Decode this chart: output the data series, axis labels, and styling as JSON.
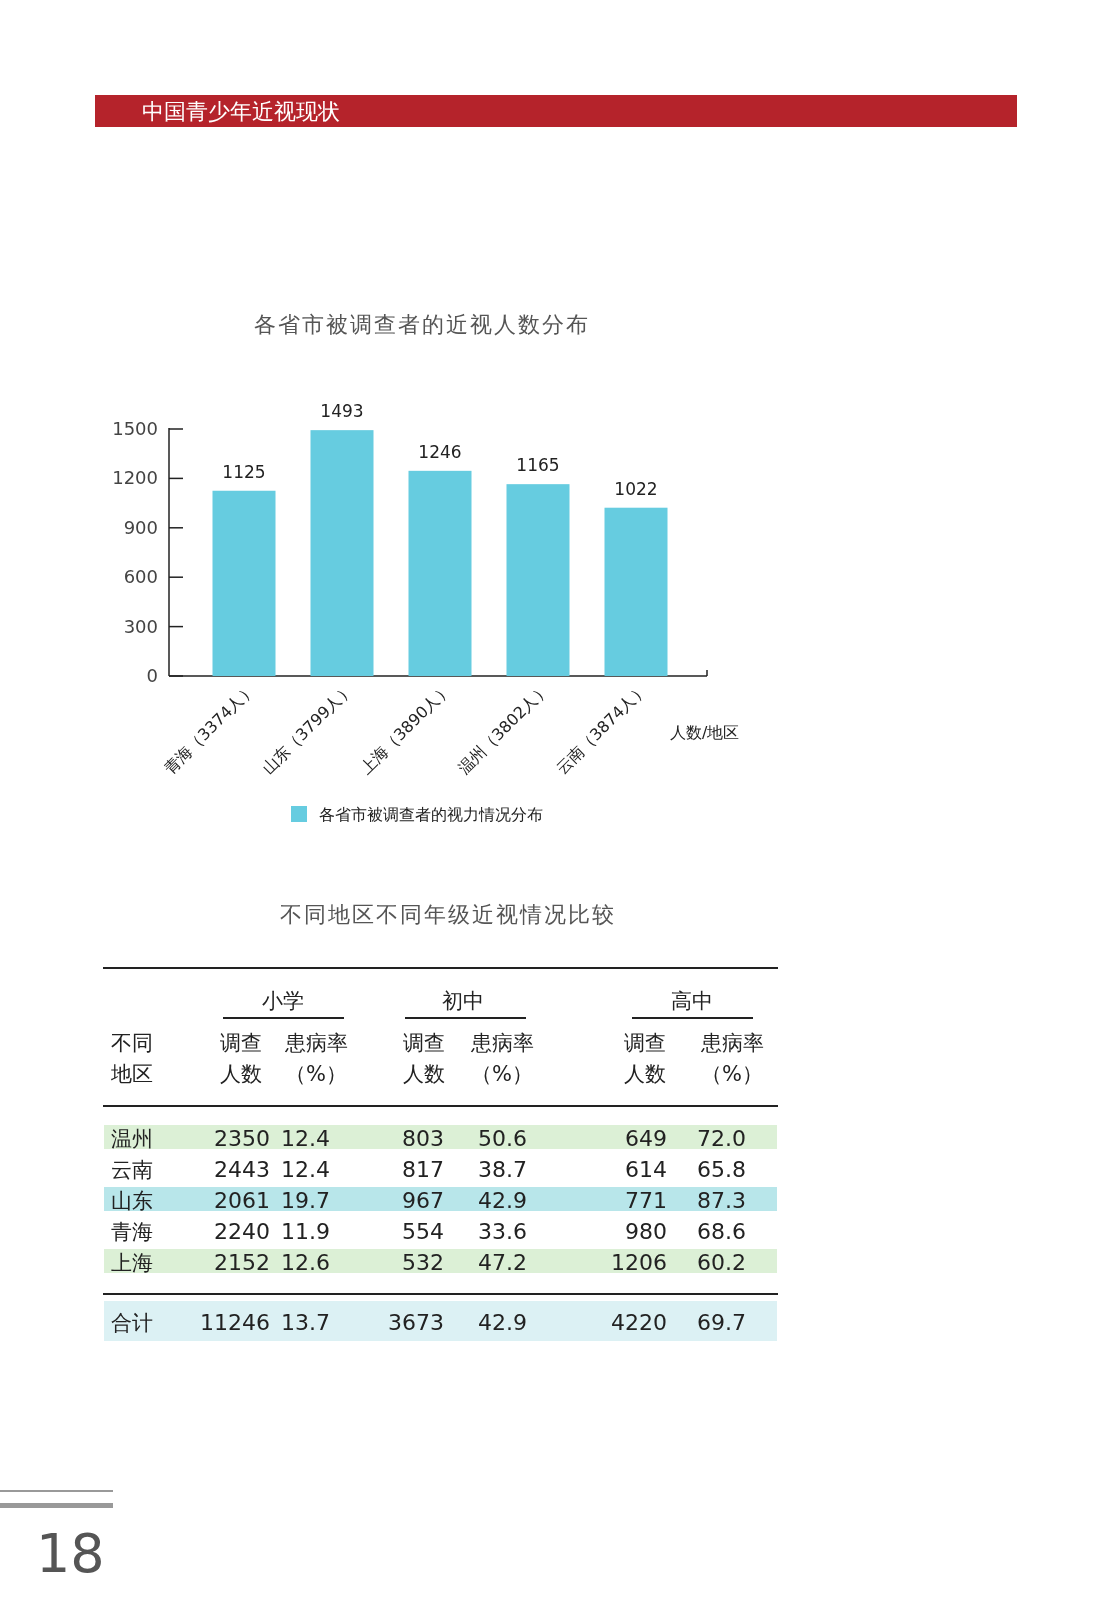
{
  "chart_data": [
    {
      "type": "other",
      "title": "中国青少年近视现状",
      "annotations": [
        "18"
      ]
    },
    {
      "type": "bar",
      "title": "各省市被调查者的近视人数分布",
      "xlabel": "人数/地区",
      "categories": [
        "青海（3374人）",
        "山东（3799人）",
        "上海（3890人）",
        "温州（3802人）",
        "云南（3874人）"
      ],
      "series": [
        {
          "name": "各省市被调查者的视力情况分布",
          "color": "#66cce0",
          "values": [
            1125,
            1493,
            1246,
            1165,
            1022
          ]
        }
      ],
      "ylim": [
        0,
        1500
      ],
      "yticks": [
        0,
        300,
        600,
        900,
        1200,
        1500
      ],
      "data_labels": true,
      "legend": "bottom"
    },
    {
      "type": "other",
      "title": "不同地区不同年级近视情况比较",
      "ylabel": "不同地区",
      "annotations": [
        "小学",
        "初中",
        "高中"
      ],
      "categories": [
        "调查人数",
        "患病率（%）",
        "调查人数",
        "患病率（%）",
        "调查人数",
        "患病率（%）"
      ],
      "y_categories": [
        "温州",
        "云南",
        "山东",
        "青海",
        "上海",
        "合计"
      ],
      "cell_labels": [
        [
          "2350",
          "12.4",
          "803",
          "50.6",
          "649",
          "72.0"
        ],
        [
          "2443",
          "12.4",
          "817",
          "38.7",
          "614",
          "65.8"
        ],
        [
          "2061",
          "19.7",
          "967",
          "42.9",
          "771",
          "87.3"
        ],
        [
          "2240",
          "11.9",
          "554",
          "33.6",
          "980",
          "68.6"
        ],
        [
          "2152",
          "12.6",
          "532",
          "47.2",
          "1206",
          "60.2"
        ],
        [
          "11246",
          "13.7",
          "3673",
          "42.9",
          "4220",
          "69.7"
        ]
      ],
      "colors": [
        "#dcf0d6",
        "#ffffff",
        "#b8e6ea",
        "#ffffff",
        "#dcf0d6",
        "#dcf1f4"
      ]
    }
  ]
}
